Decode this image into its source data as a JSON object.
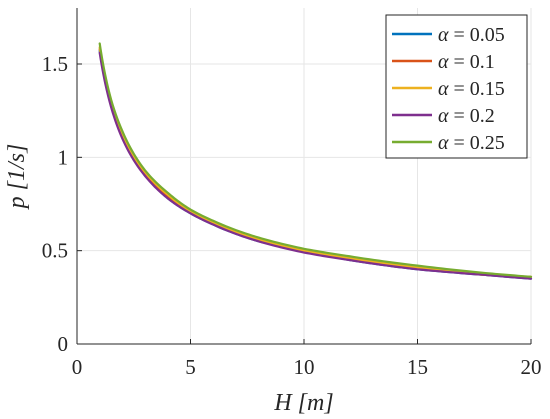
{
  "chart_data": {
    "type": "line",
    "title": "",
    "xlabel": "H [m]",
    "ylabel": "p [1/s]",
    "xlim": [
      0,
      20
    ],
    "ylim": [
      0,
      1.8
    ],
    "xticks": [
      0,
      5,
      10,
      15,
      20
    ],
    "xtick_labels": [
      "0",
      "5",
      "10",
      "15",
      "20"
    ],
    "yticks": [
      0,
      0.5,
      1,
      1.5
    ],
    "ytick_labels": [
      "0",
      "0.5",
      "1",
      "1.5"
    ],
    "grid": true,
    "legend_position": "top-right",
    "x": [
      1,
      1.5,
      2,
      3,
      4,
      5,
      6,
      8,
      10,
      12,
      15,
      18,
      20
    ],
    "series": [
      {
        "name": "α = 0.05",
        "greek": "α",
        "value_text": " = 0.05",
        "color": "#0072BD",
        "values": [
          1.57,
          1.28,
          1.11,
          0.91,
          0.78,
          0.7,
          0.64,
          0.55,
          0.5,
          0.45,
          0.4,
          0.37,
          0.35
        ]
      },
      {
        "name": "α = 0.1",
        "greek": "α",
        "value_text": " = 0.1",
        "color": "#D95319",
        "values": [
          1.58,
          1.29,
          1.12,
          0.91,
          0.79,
          0.71,
          0.65,
          0.56,
          0.5,
          0.46,
          0.41,
          0.37,
          0.36
        ]
      },
      {
        "name": "α = 0.15",
        "greek": "α",
        "value_text": " = 0.15",
        "color": "#EDB120",
        "values": [
          1.59,
          1.3,
          1.12,
          0.92,
          0.8,
          0.71,
          0.65,
          0.56,
          0.5,
          0.46,
          0.41,
          0.37,
          0.36
        ]
      },
      {
        "name": "α = 0.2",
        "greek": "α",
        "value_text": " = 0.2",
        "color": "#7E2F8E",
        "values": [
          1.56,
          1.27,
          1.1,
          0.9,
          0.78,
          0.7,
          0.64,
          0.55,
          0.49,
          0.45,
          0.4,
          0.37,
          0.35
        ]
      },
      {
        "name": "α = 0.25",
        "greek": "α",
        "value_text": " = 0.25",
        "color": "#77AC30",
        "values": [
          1.61,
          1.31,
          1.14,
          0.93,
          0.81,
          0.72,
          0.66,
          0.57,
          0.51,
          0.47,
          0.42,
          0.38,
          0.36
        ]
      }
    ]
  }
}
